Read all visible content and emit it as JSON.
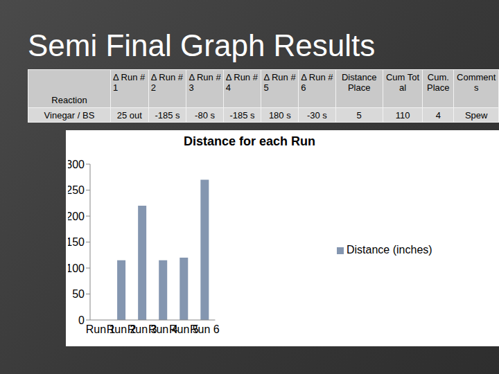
{
  "title": "Semi Final Graph Results",
  "table": {
    "header": [
      "Reaction",
      "Δ Run #1",
      "Δ Run #2",
      "Δ Run #3",
      "Δ Run #4",
      "Δ Run #5",
      "Δ Run #6",
      "Distance Place",
      "Cum Total",
      "Cum.Place",
      "Comments"
    ],
    "rows": [
      [
        "Vinegar / BS",
        "25 out",
        "-185 s",
        "-80 s",
        "-185 s",
        "180 s",
        "-30 s",
        "5",
        "110",
        "4",
        "Spew"
      ]
    ]
  },
  "chart_data": {
    "type": "bar",
    "title": "Distance for each Run",
    "categories": [
      "Run 1",
      "Run 2",
      "Run 3",
      "Run 4",
      "Run 5",
      "Run 6"
    ],
    "series": [
      {
        "name": "Distance (inches)",
        "color": "#8496b0",
        "values": [
          null,
          115,
          220,
          115,
          120,
          270
        ]
      }
    ],
    "ylim": [
      0,
      300
    ],
    "yticks": [
      0,
      50,
      100,
      150,
      200,
      250,
      300
    ],
    "grid": false,
    "legend": "right"
  }
}
